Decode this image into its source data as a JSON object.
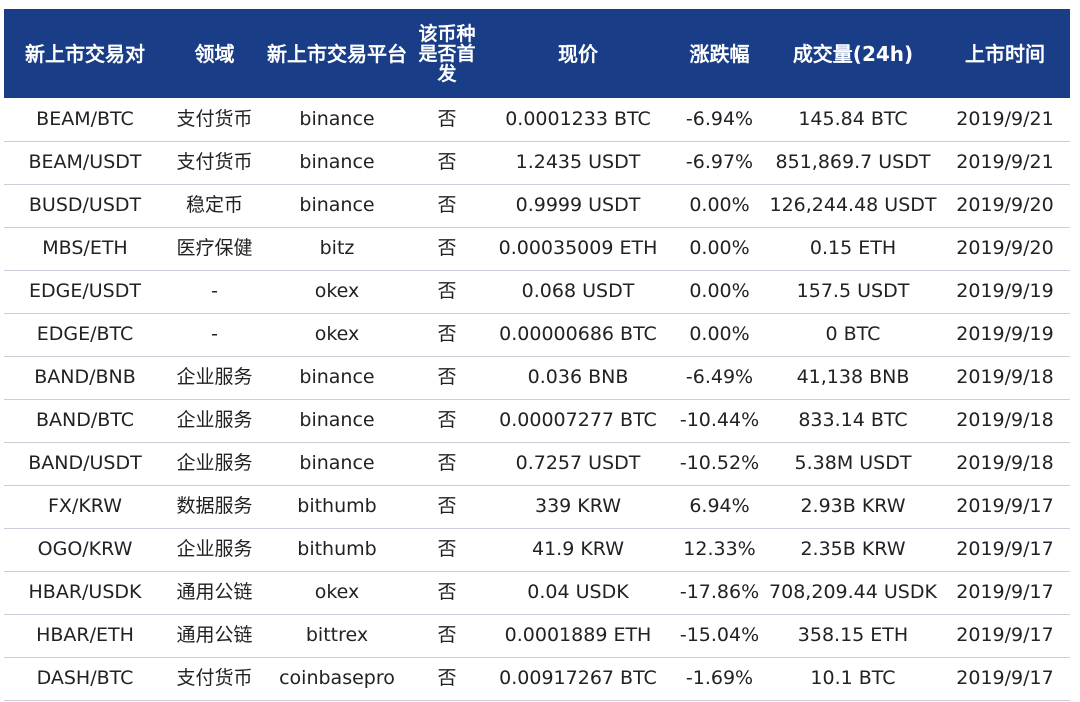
{
  "table": {
    "headers": [
      "新上市交易对",
      "领域",
      "新上市交易平台",
      "该币种是否首发",
      "现价",
      "涨跌幅",
      "成交量(24h)",
      "上市时间"
    ],
    "rows": [
      [
        "BEAM/BTC",
        "支付货币",
        "binance",
        "否",
        "0.0001233 BTC",
        "-6.94%",
        "145.84 BTC",
        "2019/9/21"
      ],
      [
        "BEAM/USDT",
        "支付货币",
        "binance",
        "否",
        "1.2435 USDT",
        "-6.97%",
        "851,869.7 USDT",
        "2019/9/21"
      ],
      [
        "BUSD/USDT",
        "稳定币",
        "binance",
        "否",
        "0.9999 USDT",
        "0.00%",
        "126,244.48 USDT",
        "2019/9/20"
      ],
      [
        "MBS/ETH",
        "医疗保健",
        "bitz",
        "否",
        "0.00035009 ETH",
        "0.00%",
        "0.15 ETH",
        "2019/9/20"
      ],
      [
        "EDGE/USDT",
        "-",
        "okex",
        "否",
        "0.068 USDT",
        "0.00%",
        "157.5 USDT",
        "2019/9/19"
      ],
      [
        "EDGE/BTC",
        "-",
        "okex",
        "否",
        "0.00000686 BTC",
        "0.00%",
        "0 BTC",
        "2019/9/19"
      ],
      [
        "BAND/BNB",
        "企业服务",
        "binance",
        "否",
        "0.036 BNB",
        "-6.49%",
        "41,138 BNB",
        "2019/9/18"
      ],
      [
        "BAND/BTC",
        "企业服务",
        "binance",
        "否",
        "0.00007277 BTC",
        "-10.44%",
        "833.14 BTC",
        "2019/9/18"
      ],
      [
        "BAND/USDT",
        "企业服务",
        "binance",
        "否",
        "0.7257 USDT",
        "-10.52%",
        "5.38M USDT",
        "2019/9/18"
      ],
      [
        "FX/KRW",
        "数据服务",
        "bithumb",
        "否",
        "339 KRW",
        "6.94%",
        "2.93B KRW",
        "2019/9/17"
      ],
      [
        "OGO/KRW",
        "企业服务",
        "bithumb",
        "否",
        "41.9 KRW",
        "12.33%",
        "2.35B KRW",
        "2019/9/17"
      ],
      [
        "HBAR/USDK",
        "通用公链",
        "okex",
        "否",
        "0.04 USDK",
        "-17.86%",
        "708,209.44 USDK",
        "2019/9/17"
      ],
      [
        "HBAR/ETH",
        "通用公链",
        "bittrex",
        "否",
        "0.0001889 ETH",
        "-15.04%",
        "358.15 ETH",
        "2019/9/17"
      ],
      [
        "DASH/BTC",
        "支付货币",
        "coinbasepro",
        "否",
        "0.00917267 BTC",
        "-1.69%",
        "10.1 BTC",
        "2019/9/17"
      ]
    ]
  }
}
